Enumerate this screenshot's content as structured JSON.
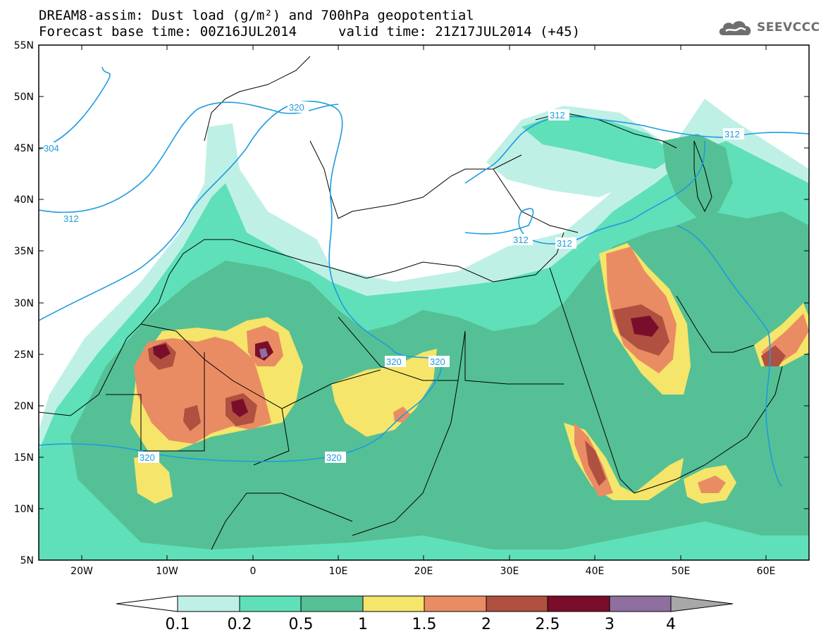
{
  "title": {
    "line1": "DREAM8-assim: Dust load (g/m²) and 700hPa geopotential",
    "line2_left": "Forecast base time: 00Z16JUL2014",
    "line2_right": "valid time: 21Z17JUL2014 (+45)"
  },
  "logo": {
    "text": "SEEVCCC",
    "icon": "cloud-icon"
  },
  "map": {
    "lat_labels": [
      "55N",
      "50N",
      "45N",
      "40N",
      "35N",
      "30N",
      "25N",
      "20N",
      "15N",
      "10N",
      "5N"
    ],
    "lon_labels": [
      "20W",
      "10W",
      "0",
      "10E",
      "20E",
      "30E",
      "40E",
      "50E",
      "60E"
    ],
    "contour_labels": [
      "304",
      "312",
      "320",
      "312",
      "312",
      "312",
      "312",
      "320",
      "320",
      "320",
      "320"
    ]
  },
  "colorbar": {
    "ticks": [
      "0.1",
      "0.2",
      "0.5",
      "1",
      "1.5",
      "2",
      "2.5",
      "3",
      "4"
    ],
    "colors": [
      "#ffffff",
      "#bff0e6",
      "#5fe0b8",
      "#55c095",
      "#f5e56a",
      "#ea8c63",
      "#b05040",
      "#7a0e2a",
      "#8f6f9f",
      "#a8a8a8"
    ]
  }
}
